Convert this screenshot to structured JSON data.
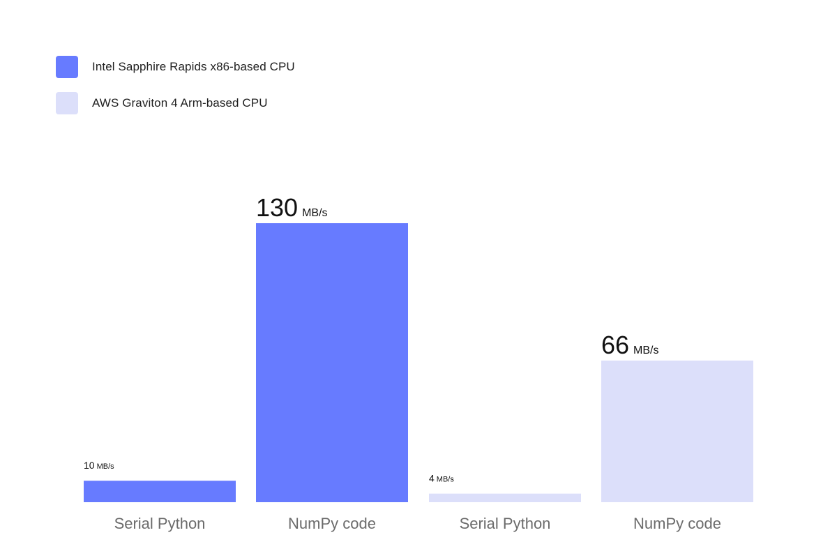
{
  "colors": {
    "intel": "#677bff",
    "graviton": "#dcdffa",
    "category_text": "#6b6b6b",
    "value_text": "#111111"
  },
  "legend": {
    "items": [
      {
        "label": "Intel Sapphire Rapids x86-based CPU",
        "color_key": "intel"
      },
      {
        "label": "AWS Graviton 4 Arm-based CPU",
        "color_key": "graviton"
      }
    ]
  },
  "chart_data": {
    "type": "bar",
    "unit": "MB/s",
    "ylim": [
      0,
      130
    ],
    "grid": false,
    "legend_position": "top-left",
    "bars": [
      {
        "category": "Serial Python",
        "series": "Intel Sapphire Rapids x86-based CPU",
        "value": 10,
        "value_label": "10",
        "unit": "MB/s",
        "color_key": "intel"
      },
      {
        "category": "NumPy code",
        "series": "Intel Sapphire Rapids x86-based CPU",
        "value": 130,
        "value_label": "130",
        "unit": "MB/s",
        "color_key": "intel"
      },
      {
        "category": "Serial Python",
        "series": "AWS Graviton 4 Arm-based CPU",
        "value": 4,
        "value_label": "4",
        "unit": "MB/s",
        "color_key": "graviton"
      },
      {
        "category": "NumPy code",
        "series": "AWS Graviton 4 Arm-based CPU",
        "value": 66,
        "value_label": "66",
        "unit": "MB/s",
        "color_key": "graviton"
      }
    ]
  }
}
